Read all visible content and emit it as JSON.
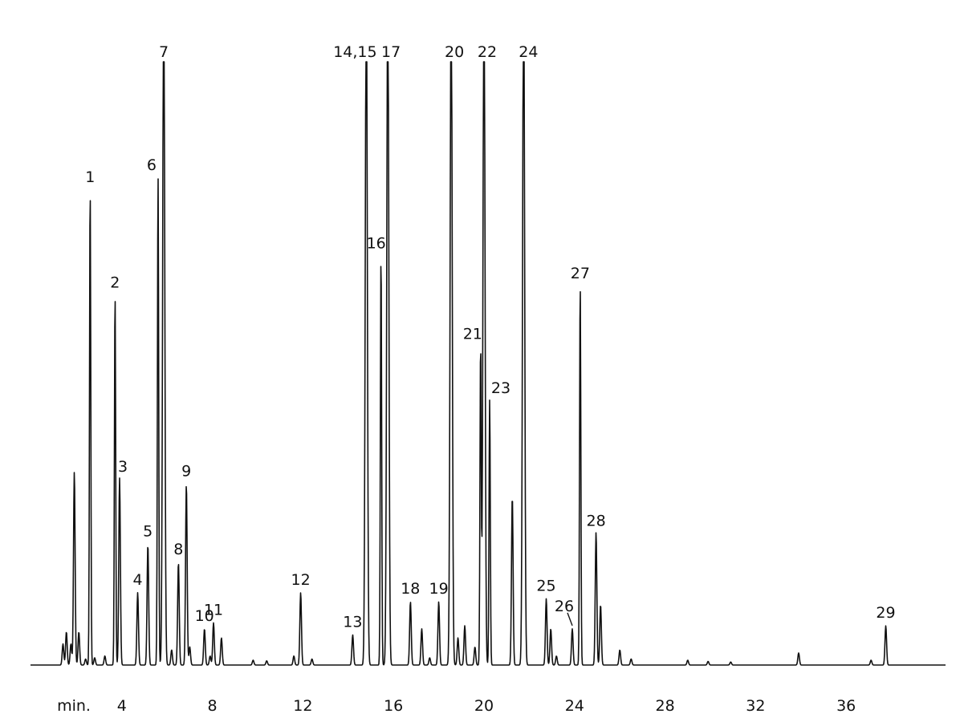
{
  "chart_data": {
    "type": "line",
    "title": "",
    "xlabel": "",
    "ylabel": "",
    "x_unit_label": "min.",
    "xlim": [
      0,
      40
    ],
    "ylim": [
      0,
      100
    ],
    "grid": false,
    "legend": "none",
    "colors": {
      "trace": "#111111",
      "background": "#ffffff"
    },
    "x_ticks": [
      4,
      8,
      12,
      16,
      20,
      24,
      28,
      32,
      36
    ],
    "x_tick_labels": [
      "4",
      "8",
      "12",
      "16",
      "20",
      "24",
      "28",
      "32",
      "36"
    ],
    "peaks": [
      {
        "label": "1",
        "rt": 2.6,
        "height": 79
      },
      {
        "label": "2",
        "rt": 3.7,
        "height": 61.5
      },
      {
        "label": "3",
        "rt": 3.9,
        "height": 31
      },
      {
        "label": "4",
        "rt": 4.7,
        "height": 12
      },
      {
        "label": "5",
        "rt": 5.15,
        "height": 20
      },
      {
        "label": "6",
        "rt": 5.6,
        "height": 81
      },
      {
        "label": "7",
        "rt": 5.85,
        "height": 100,
        "offscale": true
      },
      {
        "label": "8",
        "rt": 6.5,
        "height": 17
      },
      {
        "label": "9",
        "rt": 6.85,
        "height": 30
      },
      {
        "label": "10",
        "rt": 7.65,
        "height": 6
      },
      {
        "label": "11",
        "rt": 8.05,
        "height": 7
      },
      {
        "label": "12",
        "rt": 11.9,
        "height": 12
      },
      {
        "label": "13",
        "rt": 14.2,
        "height": 5
      },
      {
        "label": "14,15",
        "rt": 14.8,
        "height": 100,
        "offscale": true
      },
      {
        "label": "16",
        "rt": 15.45,
        "height": 68
      },
      {
        "label": "17",
        "rt": 15.75,
        "height": 100,
        "offscale": true
      },
      {
        "label": "18",
        "rt": 16.75,
        "height": 10.5
      },
      {
        "label": "19",
        "rt": 18.0,
        "height": 10.5
      },
      {
        "label": "20",
        "rt": 18.55,
        "height": 100,
        "offscale": true
      },
      {
        "label": "21",
        "rt": 19.85,
        "height": 53
      },
      {
        "label": "22",
        "rt": 20.0,
        "height": 100,
        "offscale": true
      },
      {
        "label": "23",
        "rt": 20.25,
        "height": 44
      },
      {
        "label": "24",
        "rt": 21.75,
        "height": 100,
        "offscale": true
      },
      {
        "label": "25",
        "rt": 22.75,
        "height": 11
      },
      {
        "label": "26",
        "rt": 23.9,
        "height": 6
      },
      {
        "label": "27",
        "rt": 24.25,
        "height": 63
      },
      {
        "label": "28",
        "rt": 24.95,
        "height": 22
      },
      {
        "label": "29",
        "rt": 37.75,
        "height": 6.5
      }
    ],
    "minor_peaks": [
      {
        "rt": 1.4,
        "height": 3.5
      },
      {
        "rt": 1.55,
        "height": 5.5
      },
      {
        "rt": 1.75,
        "height": 3.5
      },
      {
        "rt": 1.9,
        "height": 32
      },
      {
        "rt": 2.1,
        "height": 5.5
      },
      {
        "rt": 2.4,
        "height": 1
      },
      {
        "rt": 2.8,
        "height": 1.2
      },
      {
        "rt": 3.25,
        "height": 1.5
      },
      {
        "rt": 6.2,
        "height": 2.5
      },
      {
        "rt": 7.0,
        "height": 3
      },
      {
        "rt": 7.9,
        "height": 1.5
      },
      {
        "rt": 8.4,
        "height": 4.5
      },
      {
        "rt": 9.8,
        "height": 0.8
      },
      {
        "rt": 10.4,
        "height": 0.7
      },
      {
        "rt": 11.6,
        "height": 1.5
      },
      {
        "rt": 12.4,
        "height": 1
      },
      {
        "rt": 17.25,
        "height": 6
      },
      {
        "rt": 17.6,
        "height": 1.2
      },
      {
        "rt": 18.85,
        "height": 4.5
      },
      {
        "rt": 19.15,
        "height": 6.5
      },
      {
        "rt": 19.6,
        "height": 3
      },
      {
        "rt": 21.25,
        "height": 28
      },
      {
        "rt": 22.95,
        "height": 6
      },
      {
        "rt": 23.2,
        "height": 1.5
      },
      {
        "rt": 25.15,
        "height": 10
      },
      {
        "rt": 26.0,
        "height": 2.5
      },
      {
        "rt": 26.5,
        "height": 1
      },
      {
        "rt": 29.0,
        "height": 0.8
      },
      {
        "rt": 29.9,
        "height": 0.6
      },
      {
        "rt": 30.9,
        "height": 0.5
      },
      {
        "rt": 33.9,
        "height": 2
      },
      {
        "rt": 37.1,
        "height": 0.8
      }
    ]
  }
}
